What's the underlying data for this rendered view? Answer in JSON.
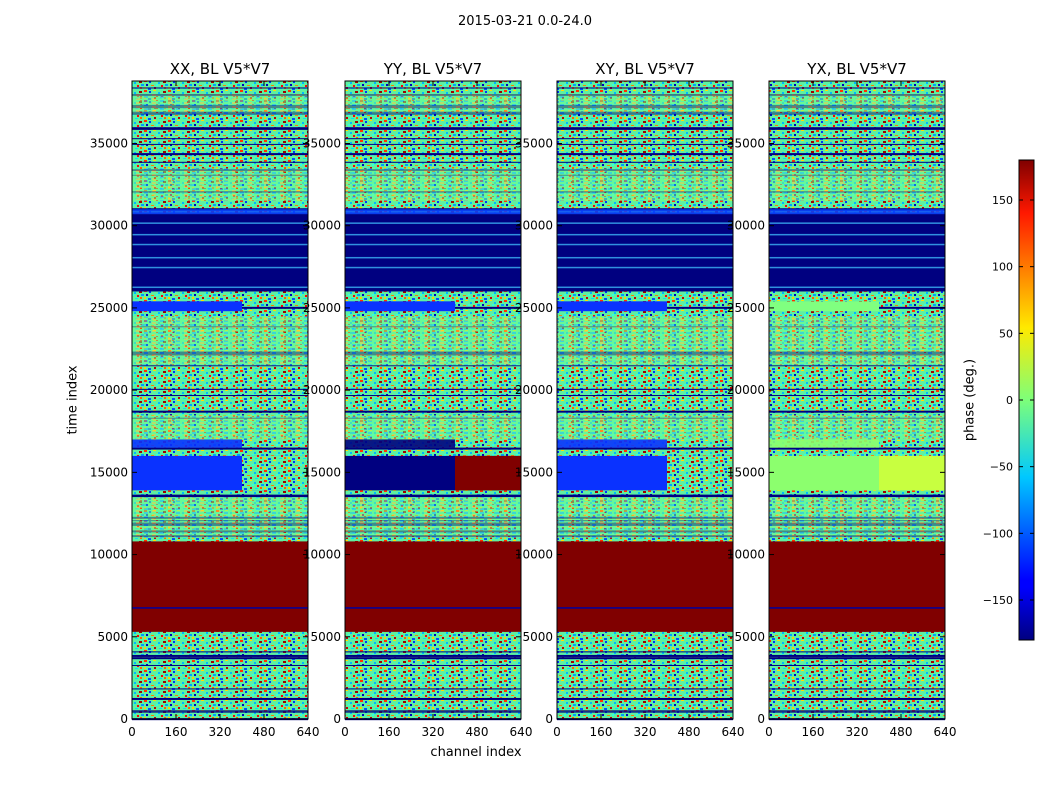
{
  "figure": {
    "suptitle": "2015-03-21 0.0-24.0"
  },
  "chart_data": {
    "type": "heatmap",
    "xlabel": "channel index",
    "ylabel": "time index",
    "xlim": [
      0,
      640
    ],
    "ylim": [
      0,
      38800
    ],
    "xticks": [
      0,
      160,
      320,
      480,
      640
    ],
    "yticks": [
      0,
      5000,
      10000,
      15000,
      20000,
      25000,
      30000,
      35000
    ],
    "panels": [
      {
        "title": "XX, BL V5*V7",
        "band_15k": "blue",
        "band_15k_right": "noise"
      },
      {
        "title": "YY, BL V5*V7",
        "band_15k": "navy",
        "band_15k_right": "darkred"
      },
      {
        "title": "XY, BL V5*V7",
        "band_15k": "blue",
        "band_15k_right": "noise"
      },
      {
        "title": "YX, BL V5*V7",
        "band_15k": "lightgreen",
        "band_15k_right": "yellowgreen"
      }
    ],
    "colorbar": {
      "label": "phase (deg.)",
      "range": [
        -180,
        180
      ],
      "ticks": [
        -150,
        -100,
        -50,
        0,
        50,
        100,
        150
      ],
      "colormap": "jet"
    },
    "regions": [
      {
        "y": [
          5300,
          10800
        ],
        "value": "darkred",
        "note_line_at": 6800
      },
      {
        "y": [
          26000,
          30800
        ],
        "value": "navy"
      }
    ]
  }
}
